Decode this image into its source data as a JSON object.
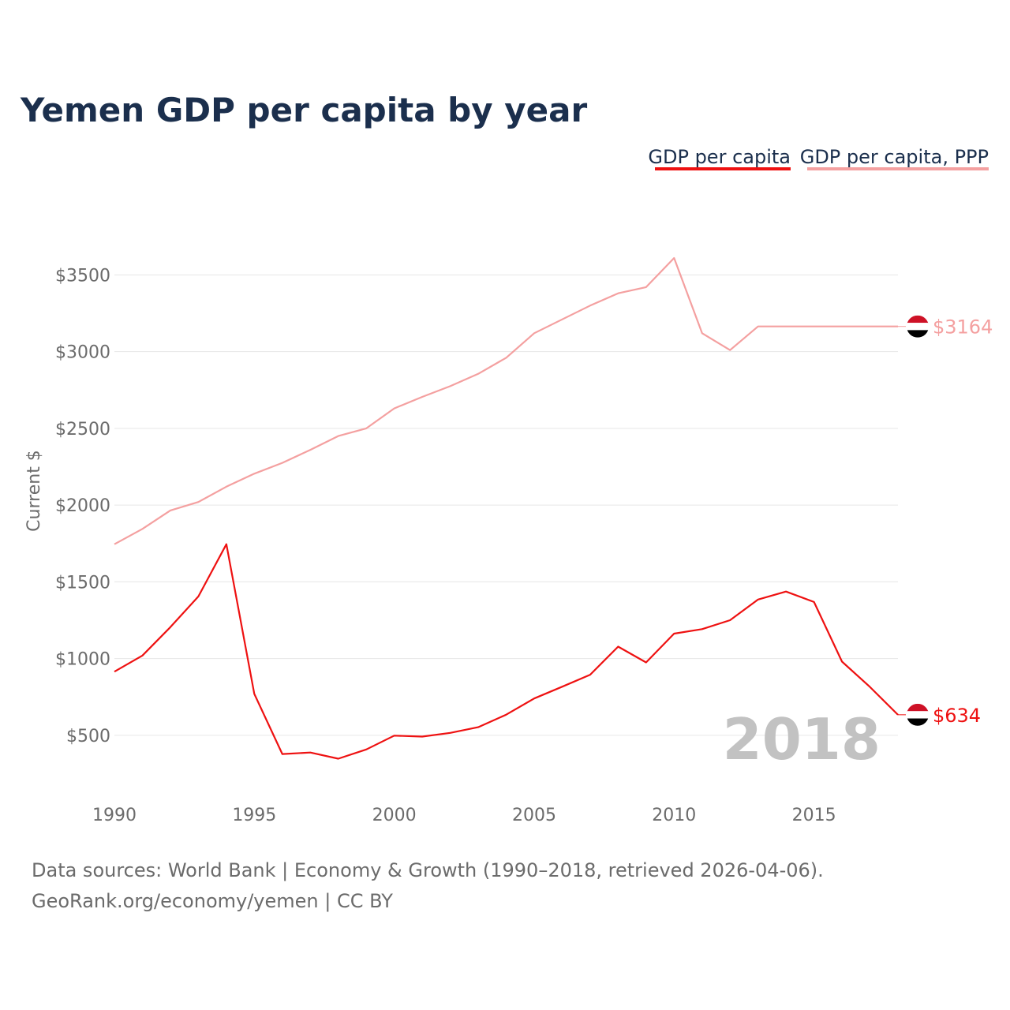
{
  "chart_data": {
    "type": "line",
    "title": "Yemen GDP per capita by year",
    "ylabel": "Current $",
    "xlabel": "",
    "xlim": [
      1990,
      2018
    ],
    "ylim": [
      150,
      3800
    ],
    "x": [
      1990,
      1991,
      1992,
      1993,
      1994,
      1995,
      1996,
      1997,
      1998,
      1999,
      2000,
      2001,
      2002,
      2003,
      2004,
      2005,
      2006,
      2007,
      2008,
      2009,
      2010,
      2011,
      2012,
      2013,
      2014,
      2015,
      2016,
      2017,
      2018
    ],
    "x_ticks": [
      1990,
      1995,
      2000,
      2005,
      2010,
      2015
    ],
    "x_tick_labels": [
      "1990",
      "1995",
      "2000",
      "2005",
      "2010",
      "2015"
    ],
    "y_ticks": [
      500,
      1000,
      1500,
      2000,
      2500,
      3000,
      3500
    ],
    "y_tick_labels": [
      "$500",
      "$1000",
      "$1500",
      "$2000",
      "$2500",
      "$3000",
      "$3500"
    ],
    "grid": true,
    "legend_position": "top-right",
    "year_label": "2018",
    "series": [
      {
        "name": "GDP per capita",
        "color": "#ee1111",
        "end_label": "$634",
        "values": [
          915,
          1020,
          1205,
          1405,
          1745,
          770,
          378,
          388,
          348,
          408,
          498,
          492,
          516,
          553,
          635,
          740,
          817,
          895,
          1078,
          975,
          1163,
          1192,
          1250,
          1385,
          1437,
          1369,
          980,
          815,
          634
        ]
      },
      {
        "name": "GDP per capita, PPP",
        "color": "#f4a0a0",
        "end_label": "$3164",
        "values": [
          1745,
          1845,
          1965,
          2020,
          2120,
          2205,
          2275,
          2360,
          2450,
          2500,
          2630,
          2705,
          2775,
          2855,
          2960,
          3120,
          3210,
          3300,
          3380,
          3420,
          3610,
          3120,
          3010,
          3164,
          3164,
          3164,
          3164,
          3164,
          3164
        ]
      }
    ]
  },
  "footer": {
    "line1": "Data sources: World Bank | Economy & Growth (1990–2018, retrieved 2026-04-06).",
    "line2": "GeoRank.org/economy/yemen | CC BY"
  },
  "colors": {
    "flag_red": "#ce1126",
    "flag_white": "#ffffff",
    "flag_black": "#000000"
  }
}
